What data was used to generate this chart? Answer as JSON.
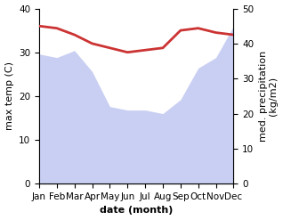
{
  "months": [
    "Jan",
    "Feb",
    "Mar",
    "Apr",
    "May",
    "Jun",
    "Jul",
    "Aug",
    "Sep",
    "Oct",
    "Nov",
    "Dec"
  ],
  "x": [
    0,
    1,
    2,
    3,
    4,
    5,
    6,
    7,
    8,
    9,
    10,
    11
  ],
  "temp_max": [
    36,
    35.5,
    34,
    32,
    31,
    30,
    30.5,
    31,
    35,
    35.5,
    34.5,
    34
  ],
  "precipitation": [
    37,
    36,
    38,
    32,
    22,
    21,
    21,
    20,
    24,
    33,
    36,
    45
  ],
  "temp_color": "#cc3333",
  "precip_fill_color": "#b8c0ee",
  "precip_fill_alpha": 0.75,
  "ylabel_left": "max temp (C)",
  "ylabel_right": "med. precipitation\n(kg/m2)",
  "xlabel": "date (month)",
  "ylim_left": [
    0,
    40
  ],
  "ylim_right": [
    0,
    50
  ],
  "yticks_left": [
    0,
    10,
    20,
    30,
    40
  ],
  "yticks_right": [
    0,
    10,
    20,
    30,
    40,
    50
  ],
  "label_fontsize": 8,
  "tick_fontsize": 7.5,
  "linewidth": 2.0
}
